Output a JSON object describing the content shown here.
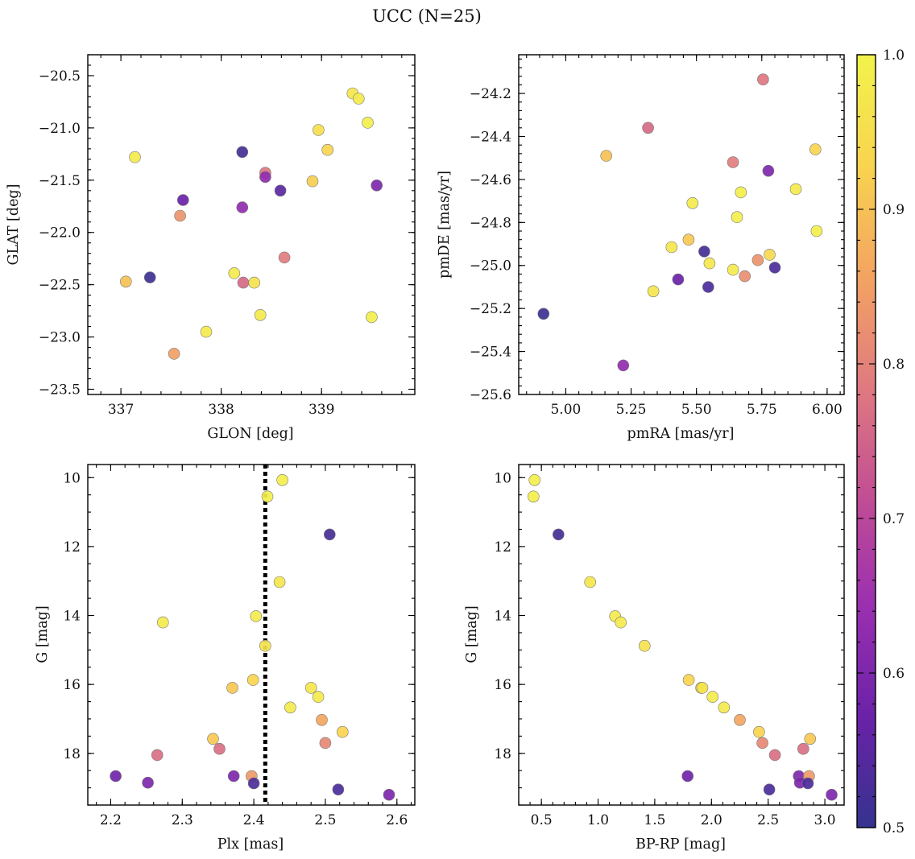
{
  "figure_title": "UCC (N=25)",
  "colorbar": {
    "range": [
      0.5,
      1.0
    ],
    "ticks": [
      0.5,
      0.6,
      0.7,
      0.8,
      0.9,
      1.0
    ],
    "tick_labels": [
      "0.5",
      "0.6",
      "0.7",
      "0.8",
      "0.9",
      "1.0"
    ],
    "colormap": "plasma",
    "stops": [
      "#35338f",
      "#6a22a8",
      "#9a2fb0",
      "#c24e94",
      "#e07a80",
      "#f3a461",
      "#f8d44f",
      "#f2f34c"
    ]
  },
  "chart_data": [
    {
      "type": "scatter",
      "name": "sky-position",
      "xlabel": "GLON [deg]",
      "ylabel": "GLAT [deg]",
      "xlim": [
        336.67,
        339.93
      ],
      "ylim": [
        -23.55,
        -20.3
      ],
      "xticks": [
        337,
        338,
        339
      ],
      "xtick_labels": [
        "337",
        "338",
        "339"
      ],
      "yticks": [
        -23.5,
        -23.0,
        -22.5,
        -22.0,
        -21.5,
        -21.0,
        -20.5
      ],
      "ytick_labels": [
        "−23.5",
        "−23.0",
        "−22.5",
        "−22.0",
        "−21.5",
        "−21.0",
        "−20.5"
      ],
      "points": [
        {
          "x": 339.31,
          "y": -20.67,
          "p": 0.97
        },
        {
          "x": 339.37,
          "y": -20.72,
          "p": 0.98
        },
        {
          "x": 339.46,
          "y": -20.95,
          "p": 0.99
        },
        {
          "x": 338.97,
          "y": -21.02,
          "p": 0.95
        },
        {
          "x": 339.06,
          "y": -21.21,
          "p": 0.93
        },
        {
          "x": 337.14,
          "y": -21.28,
          "p": 0.98
        },
        {
          "x": 338.21,
          "y": -21.23,
          "p": 0.52
        },
        {
          "x": 338.44,
          "y": -21.43,
          "p": 0.78
        },
        {
          "x": 338.44,
          "y": -21.47,
          "p": 0.63
        },
        {
          "x": 338.91,
          "y": -21.51,
          "p": 0.92
        },
        {
          "x": 339.55,
          "y": -21.55,
          "p": 0.6
        },
        {
          "x": 338.59,
          "y": -21.6,
          "p": 0.55
        },
        {
          "x": 337.62,
          "y": -21.69,
          "p": 0.57
        },
        {
          "x": 338.21,
          "y": -21.76,
          "p": 0.63
        },
        {
          "x": 337.59,
          "y": -21.84,
          "p": 0.83
        },
        {
          "x": 338.63,
          "y": -22.24,
          "p": 0.79
        },
        {
          "x": 338.13,
          "y": -22.39,
          "p": 0.98
        },
        {
          "x": 337.29,
          "y": -22.43,
          "p": 0.51
        },
        {
          "x": 337.05,
          "y": -22.47,
          "p": 0.9
        },
        {
          "x": 338.22,
          "y": -22.48,
          "p": 0.76
        },
        {
          "x": 338.33,
          "y": -22.48,
          "p": 0.96
        },
        {
          "x": 338.39,
          "y": -22.79,
          "p": 0.98
        },
        {
          "x": 339.5,
          "y": -22.81,
          "p": 0.99
        },
        {
          "x": 337.85,
          "y": -22.95,
          "p": 0.98
        },
        {
          "x": 337.53,
          "y": -23.16,
          "p": 0.85
        }
      ]
    },
    {
      "type": "scatter",
      "name": "proper-motion",
      "xlabel": "pmRA [mas/yr]",
      "ylabel": "pmDE [mas/yr]",
      "xlim": [
        4.82,
        6.065
      ],
      "ylim": [
        -25.6,
        -24.02
      ],
      "xticks": [
        5.0,
        5.25,
        5.5,
        5.75,
        6.0
      ],
      "xtick_labels": [
        "5.00",
        "5.25",
        "5.50",
        "5.75",
        "6.00"
      ],
      "yticks": [
        -25.6,
        -25.4,
        -25.2,
        -25.0,
        -24.8,
        -24.6,
        -24.4,
        -24.2
      ],
      "ytick_labels": [
        "−25.6",
        "−25.4",
        "−25.2",
        "−25.0",
        "−24.8",
        "−24.6",
        "−24.4",
        "−24.2"
      ],
      "points": [
        {
          "x": 5.755,
          "y": -24.135,
          "p": 0.78
        },
        {
          "x": 5.315,
          "y": -24.36,
          "p": 0.76
        },
        {
          "x": 5.955,
          "y": -24.46,
          "p": 0.93
        },
        {
          "x": 5.155,
          "y": -24.49,
          "p": 0.9
        },
        {
          "x": 5.64,
          "y": -24.52,
          "p": 0.79
        },
        {
          "x": 5.775,
          "y": -24.56,
          "p": 0.6
        },
        {
          "x": 5.88,
          "y": -24.645,
          "p": 0.98
        },
        {
          "x": 5.67,
          "y": -24.66,
          "p": 0.99
        },
        {
          "x": 5.485,
          "y": -24.71,
          "p": 0.98
        },
        {
          "x": 5.655,
          "y": -24.775,
          "p": 0.99
        },
        {
          "x": 5.96,
          "y": -24.84,
          "p": 0.99
        },
        {
          "x": 5.47,
          "y": -24.88,
          "p": 0.91
        },
        {
          "x": 5.405,
          "y": -24.915,
          "p": 0.97
        },
        {
          "x": 5.53,
          "y": -24.935,
          "p": 0.52
        },
        {
          "x": 5.78,
          "y": -24.95,
          "p": 0.94
        },
        {
          "x": 5.735,
          "y": -24.975,
          "p": 0.83
        },
        {
          "x": 5.55,
          "y": -24.99,
          "p": 0.97
        },
        {
          "x": 5.8,
          "y": -25.01,
          "p": 0.53
        },
        {
          "x": 5.64,
          "y": -25.02,
          "p": 0.98
        },
        {
          "x": 5.685,
          "y": -25.05,
          "p": 0.82
        },
        {
          "x": 5.43,
          "y": -25.065,
          "p": 0.57
        },
        {
          "x": 5.545,
          "y": -25.1,
          "p": 0.53
        },
        {
          "x": 5.335,
          "y": -25.12,
          "p": 0.97
        },
        {
          "x": 4.915,
          "y": -25.225,
          "p": 0.51
        },
        {
          "x": 5.22,
          "y": -25.465,
          "p": 0.63
        }
      ]
    },
    {
      "type": "scatter",
      "name": "parallax-magnitude",
      "xlabel": "Plx [mas]",
      "ylabel": "G [mag]",
      "xlim": [
        2.168,
        2.625
      ],
      "ylim": [
        19.5,
        9.62
      ],
      "yinverted": true,
      "vline": {
        "x": 2.416,
        "style": "dotted"
      },
      "xticks": [
        2.2,
        2.3,
        2.4,
        2.5,
        2.6
      ],
      "xtick_labels": [
        "2.2",
        "2.3",
        "2.4",
        "2.5",
        "2.6"
      ],
      "yticks": [
        10,
        12,
        14,
        16,
        18
      ],
      "ytick_labels": [
        "10",
        "12",
        "14",
        "16",
        "18"
      ],
      "points": [
        {
          "x": 2.44,
          "y": 10.07,
          "p": 0.99
        },
        {
          "x": 2.419,
          "y": 10.55,
          "p": 0.99
        },
        {
          "x": 2.506,
          "y": 11.65,
          "p": 0.52
        },
        {
          "x": 2.436,
          "y": 13.03,
          "p": 0.97
        },
        {
          "x": 2.403,
          "y": 14.02,
          "p": 0.98
        },
        {
          "x": 2.273,
          "y": 14.2,
          "p": 0.98
        },
        {
          "x": 2.416,
          "y": 14.88,
          "p": 0.96
        },
        {
          "x": 2.399,
          "y": 15.87,
          "p": 0.93
        },
        {
          "x": 2.37,
          "y": 16.1,
          "p": 0.91
        },
        {
          "x": 2.48,
          "y": 16.1,
          "p": 0.97
        },
        {
          "x": 2.49,
          "y": 16.36,
          "p": 0.98
        },
        {
          "x": 2.451,
          "y": 16.67,
          "p": 0.98
        },
        {
          "x": 2.495,
          "y": 17.03,
          "p": 0.86
        },
        {
          "x": 2.343,
          "y": 17.58,
          "p": 0.91
        },
        {
          "x": 2.524,
          "y": 17.38,
          "p": 0.93
        },
        {
          "x": 2.5,
          "y": 17.7,
          "p": 0.81
        },
        {
          "x": 2.352,
          "y": 17.87,
          "p": 0.77
        },
        {
          "x": 2.265,
          "y": 18.05,
          "p": 0.77
        },
        {
          "x": 2.207,
          "y": 18.66,
          "p": 0.58
        },
        {
          "x": 2.372,
          "y": 18.66,
          "p": 0.6
        },
        {
          "x": 2.397,
          "y": 18.66,
          "p": 0.84
        },
        {
          "x": 2.252,
          "y": 18.85,
          "p": 0.6
        },
        {
          "x": 2.4,
          "y": 18.87,
          "p": 0.53
        },
        {
          "x": 2.518,
          "y": 19.05,
          "p": 0.53
        },
        {
          "x": 2.589,
          "y": 19.2,
          "p": 0.6
        }
      ]
    },
    {
      "type": "scatter",
      "name": "color-magnitude",
      "xlabel": "BP-RP [mag]",
      "ylabel": "G [mag]",
      "xlim": [
        0.3,
        3.17
      ],
      "ylim": [
        19.5,
        9.62
      ],
      "yinverted": true,
      "xticks": [
        0.5,
        1.0,
        1.5,
        2.0,
        2.5,
        3.0
      ],
      "xtick_labels": [
        "0.5",
        "1.0",
        "1.5",
        "2.0",
        "2.5",
        "3.0"
      ],
      "yticks": [
        10,
        12,
        14,
        16,
        18
      ],
      "ytick_labels": [
        "10",
        "12",
        "14",
        "16",
        "18"
      ],
      "points": [
        {
          "x": 0.44,
          "y": 10.07,
          "p": 0.99
        },
        {
          "x": 0.43,
          "y": 10.55,
          "p": 0.99
        },
        {
          "x": 0.65,
          "y": 11.65,
          "p": 0.52
        },
        {
          "x": 0.93,
          "y": 13.03,
          "p": 0.97
        },
        {
          "x": 1.15,
          "y": 14.02,
          "p": 0.98
        },
        {
          "x": 1.2,
          "y": 14.2,
          "p": 0.98
        },
        {
          "x": 1.41,
          "y": 14.88,
          "p": 0.96
        },
        {
          "x": 1.8,
          "y": 15.87,
          "p": 0.93
        },
        {
          "x": 1.91,
          "y": 16.1,
          "p": 0.91
        },
        {
          "x": 1.92,
          "y": 16.1,
          "p": 0.97
        },
        {
          "x": 2.01,
          "y": 16.36,
          "p": 0.98
        },
        {
          "x": 2.11,
          "y": 16.67,
          "p": 0.98
        },
        {
          "x": 2.25,
          "y": 17.03,
          "p": 0.86
        },
        {
          "x": 2.42,
          "y": 17.38,
          "p": 0.93
        },
        {
          "x": 2.87,
          "y": 17.58,
          "p": 0.91
        },
        {
          "x": 2.45,
          "y": 17.7,
          "p": 0.81
        },
        {
          "x": 2.81,
          "y": 17.87,
          "p": 0.77
        },
        {
          "x": 2.56,
          "y": 18.05,
          "p": 0.77
        },
        {
          "x": 1.79,
          "y": 18.66,
          "p": 0.58
        },
        {
          "x": 2.77,
          "y": 18.66,
          "p": 0.6
        },
        {
          "x": 2.86,
          "y": 18.66,
          "p": 0.84
        },
        {
          "x": 2.78,
          "y": 18.85,
          "p": 0.6
        },
        {
          "x": 2.85,
          "y": 18.87,
          "p": 0.53
        },
        {
          "x": 2.51,
          "y": 19.05,
          "p": 0.53
        },
        {
          "x": 3.06,
          "y": 19.2,
          "p": 0.6
        }
      ]
    }
  ]
}
